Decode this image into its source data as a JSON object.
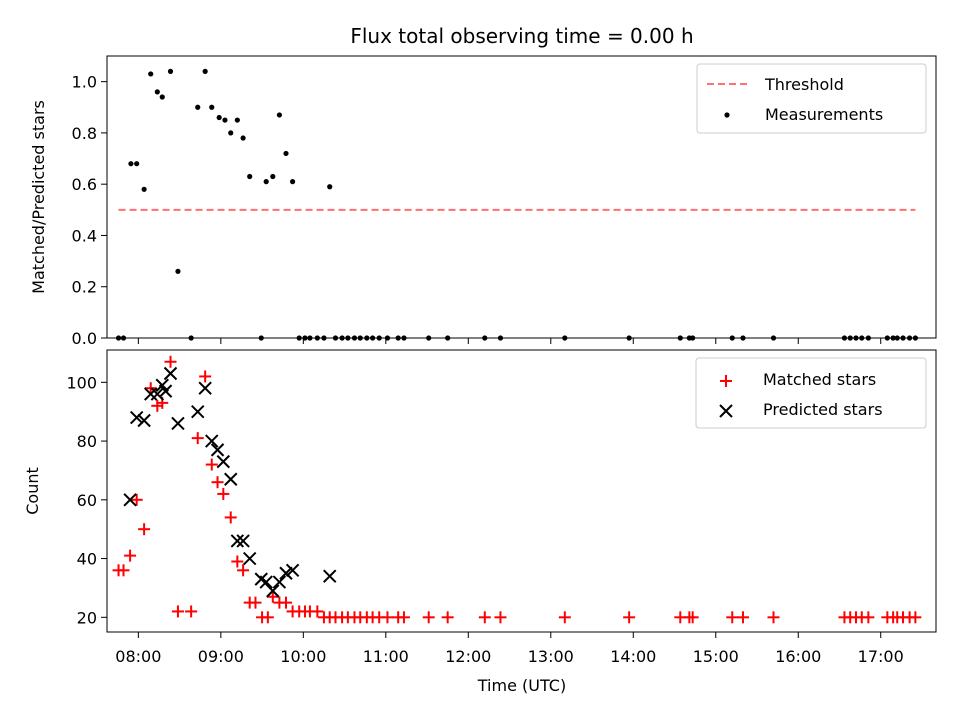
{
  "chart_data": [
    {
      "type": "scatter",
      "title": "Flux total observing time = 0.00 h",
      "xlabel": "",
      "ylabel": "Matched/Predicted stars",
      "ylim": [
        0,
        1.1
      ],
      "yticks": [
        0.0,
        0.2,
        0.4,
        0.6,
        0.8,
        1.0
      ],
      "ytick_labels": [
        "0.0",
        "0.2",
        "0.4",
        "0.6",
        "0.8",
        "1.0"
      ],
      "xlim": [
        7.62,
        17.67
      ],
      "legend_position": "top-right",
      "threshold": {
        "name": "Threshold",
        "y": 0.5,
        "x_range": [
          7.76,
          17.42
        ],
        "color": "#ff7070"
      },
      "series": [
        {
          "name": "Measurements",
          "color": "#000000",
          "x": [
            7.76,
            7.82,
            7.91,
            7.98,
            8.07,
            8.15,
            8.23,
            8.29,
            8.39,
            8.48,
            8.64,
            8.72,
            8.81,
            8.89,
            8.98,
            9.05,
            9.12,
            9.2,
            9.27,
            9.35,
            9.49,
            9.55,
            9.63,
            9.71,
            9.79,
            9.87,
            9.95,
            10.02,
            10.08,
            10.17,
            10.25,
            10.32,
            10.39,
            10.47,
            10.54,
            10.62,
            10.69,
            10.77,
            10.84,
            10.92,
            11.02,
            11.15,
            11.22,
            11.52,
            11.75,
            12.2,
            12.39,
            13.17,
            13.95,
            14.57,
            14.68,
            14.72,
            15.2,
            15.33,
            15.7,
            16.56,
            16.63,
            16.7,
            16.77,
            16.85,
            17.08,
            17.15,
            17.2,
            17.27,
            17.35,
            17.42
          ],
          "y": [
            0,
            0,
            0.68,
            0.68,
            0.58,
            1.03,
            0.96,
            0.94,
            1.04,
            0.26,
            0,
            0.9,
            1.04,
            0.9,
            0.86,
            0.85,
            0.8,
            0.85,
            0.78,
            0.63,
            0,
            0.61,
            0.63,
            0.87,
            0.72,
            0.61,
            0,
            0,
            0,
            0,
            0,
            0.59,
            0,
            0,
            0,
            0,
            0,
            0,
            0,
            0,
            0,
            0,
            0,
            0,
            0,
            0,
            0,
            0,
            0,
            0,
            0,
            0,
            0,
            0,
            0,
            0,
            0,
            0,
            0,
            0,
            0,
            0,
            0,
            0,
            0,
            0
          ]
        }
      ]
    },
    {
      "type": "scatter",
      "title": "",
      "xlabel": "Time (UTC)",
      "ylabel": "Count",
      "ylim": [
        15,
        111
      ],
      "yticks": [
        20,
        40,
        60,
        80,
        100
      ],
      "ytick_labels": [
        "20",
        "40",
        "60",
        "80",
        "100"
      ],
      "xlim": [
        7.62,
        17.67
      ],
      "xticks": [
        8,
        9,
        10,
        11,
        12,
        13,
        14,
        15,
        16,
        17
      ],
      "xtick_labels": [
        "08:00",
        "09:00",
        "10:00",
        "11:00",
        "12:00",
        "13:00",
        "14:00",
        "15:00",
        "16:00",
        "17:00"
      ],
      "legend_position": "top-right",
      "series": [
        {
          "name": "Matched stars",
          "marker": "plus",
          "color": "#ff0000",
          "x": [
            7.76,
            7.82,
            7.9,
            7.98,
            8.07,
            8.15,
            8.23,
            8.29,
            8.39,
            8.48,
            8.64,
            8.72,
            8.81,
            8.89,
            8.96,
            9.03,
            9.12,
            9.2,
            9.27,
            9.35,
            9.42,
            9.5,
            9.57,
            9.63,
            9.71,
            9.79,
            9.87,
            9.95,
            10.02,
            10.08,
            10.17,
            10.25,
            10.32,
            10.39,
            10.47,
            10.54,
            10.62,
            10.69,
            10.77,
            10.84,
            10.92,
            11.02,
            11.15,
            11.22,
            11.52,
            11.75,
            12.2,
            12.39,
            13.17,
            13.95,
            14.57,
            14.68,
            14.72,
            15.2,
            15.33,
            15.7,
            16.56,
            16.63,
            16.7,
            16.77,
            16.85,
            17.08,
            17.15,
            17.2,
            17.27,
            17.35,
            17.42
          ],
          "y": [
            36,
            36,
            41,
            60,
            50,
            98,
            92,
            93,
            107,
            22,
            22,
            81,
            102,
            72,
            66,
            62,
            54,
            39,
            36,
            25,
            25,
            20,
            20,
            27,
            25,
            25,
            22,
            22,
            22,
            22,
            22,
            20,
            20,
            20,
            20,
            20,
            20,
            20,
            20,
            20,
            20,
            20,
            20,
            20,
            20,
            20,
            20,
            20,
            20,
            20,
            20,
            20,
            20,
            20,
            20,
            20,
            20,
            20,
            20,
            20,
            20,
            20,
            20,
            20,
            20,
            20,
            20
          ]
        },
        {
          "name": "Predicted stars",
          "marker": "x",
          "color": "#000000",
          "x": [
            7.9,
            7.98,
            8.07,
            8.15,
            8.23,
            8.29,
            8.33,
            8.39,
            8.48,
            8.72,
            8.81,
            8.89,
            8.96,
            9.03,
            9.12,
            9.2,
            9.27,
            9.35,
            9.49,
            9.55,
            9.63,
            9.71,
            9.79,
            9.87,
            10.32
          ],
          "y": [
            60,
            88,
            87,
            96,
            96,
            99,
            97,
            103,
            86,
            90,
            98,
            80,
            77,
            73,
            67,
            46,
            46,
            40,
            33,
            32,
            29,
            32,
            35,
            36,
            34
          ]
        }
      ]
    }
  ]
}
